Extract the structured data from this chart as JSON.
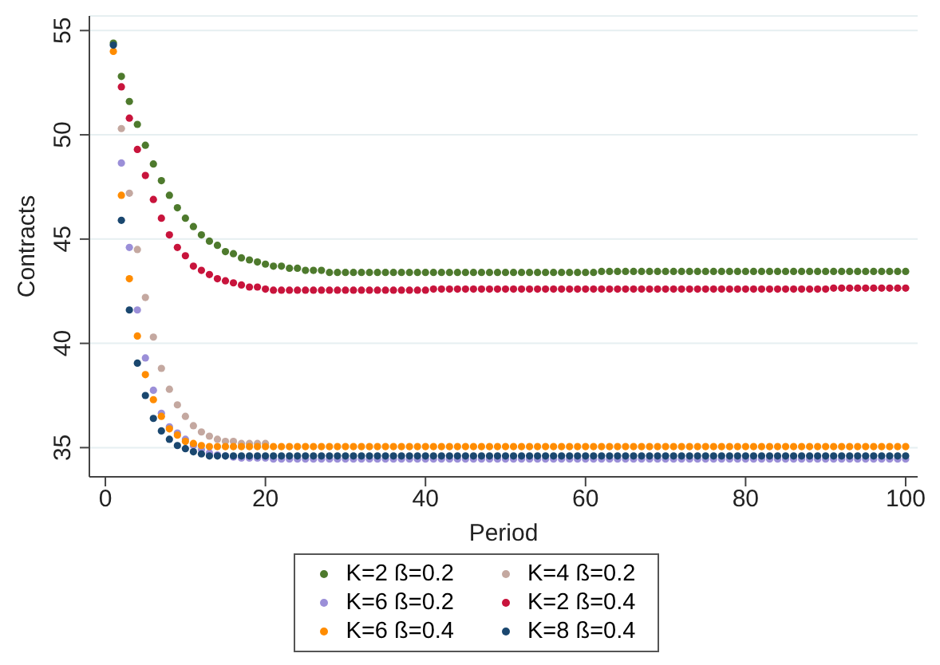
{
  "chart_data": {
    "type": "scatter",
    "xlabel": "Period",
    "ylabel": "Contracts",
    "xlim": [
      -2,
      101.5
    ],
    "xticks": [
      0,
      20,
      40,
      60,
      80,
      100
    ],
    "ylim": [
      33.6,
      55.7
    ],
    "yticks": [
      35,
      40,
      45,
      50,
      55
    ],
    "grid": "y",
    "legend": "bottom",
    "marker": "circle",
    "x": [
      1,
      2,
      3,
      4,
      5,
      6,
      7,
      8,
      9,
      10,
      11,
      12,
      13,
      14,
      15,
      16,
      17,
      18,
      19,
      20,
      21,
      22,
      23,
      24,
      25,
      26,
      27,
      28,
      29,
      30,
      31,
      32,
      33,
      34,
      35,
      36,
      37,
      38,
      39,
      40,
      41,
      42,
      43,
      44,
      45,
      46,
      47,
      48,
      49,
      50,
      51,
      52,
      53,
      54,
      55,
      56,
      57,
      58,
      59,
      60,
      61,
      62,
      63,
      64,
      65,
      66,
      67,
      68,
      69,
      70,
      71,
      72,
      73,
      74,
      75,
      76,
      77,
      78,
      79,
      80,
      81,
      82,
      83,
      84,
      85,
      86,
      87,
      88,
      89,
      90,
      91,
      92,
      93,
      94,
      95,
      96,
      97,
      98,
      99,
      100
    ],
    "series": [
      {
        "name": "K=2 ß=0.2",
        "color": "#4e7a2d",
        "values": [
          54.4,
          52.8,
          51.6,
          50.5,
          49.5,
          48.6,
          47.8,
          47.1,
          46.5,
          46.0,
          45.6,
          45.2,
          44.9,
          44.7,
          44.4,
          44.3,
          44.1,
          44.0,
          43.9,
          43.8,
          43.7,
          43.7,
          43.6,
          43.6,
          43.5,
          43.5,
          43.5,
          43.4,
          43.4,
          43.4,
          43.4,
          43.4,
          43.4,
          43.4,
          43.4,
          43.4,
          43.4,
          43.4,
          43.4,
          43.4,
          43.4,
          43.4,
          43.4,
          43.4,
          43.4,
          43.4,
          43.4,
          43.4,
          43.4,
          43.4,
          43.4,
          43.4,
          43.4,
          43.4,
          43.4,
          43.4,
          43.4,
          43.4,
          43.4,
          43.4,
          43.4,
          43.45,
          43.45,
          43.45,
          43.45,
          43.45,
          43.45,
          43.45,
          43.45,
          43.45,
          43.45,
          43.45,
          43.45,
          43.45,
          43.45,
          43.45,
          43.45,
          43.45,
          43.45,
          43.45,
          43.45,
          43.45,
          43.45,
          43.45,
          43.45,
          43.45,
          43.45,
          43.45,
          43.45,
          43.45,
          43.45,
          43.45,
          43.45,
          43.45,
          43.45,
          43.45,
          43.45,
          43.45,
          43.45,
          43.45
        ]
      },
      {
        "name": "K=4 ß=0.2",
        "color": "#c4a8a0",
        "values": [
          null,
          50.3,
          47.2,
          44.5,
          42.2,
          40.3,
          38.8,
          37.8,
          37.05,
          36.5,
          36.05,
          35.75,
          35.55,
          35.4,
          35.3,
          35.3,
          35.2,
          35.2,
          35.2,
          35.2,
          null,
          null,
          null,
          null,
          null,
          null,
          null,
          null,
          null,
          null,
          null,
          null,
          null,
          null,
          null,
          null,
          null,
          null,
          null,
          null,
          null,
          null,
          null,
          null,
          null,
          null,
          null,
          null,
          null,
          null,
          null,
          null,
          null,
          null,
          null,
          null,
          null,
          null,
          null,
          null,
          null,
          null,
          null,
          null,
          null,
          null,
          null,
          null,
          null,
          null,
          null,
          null,
          null,
          null,
          null,
          null,
          null,
          null,
          null,
          null,
          null,
          null,
          null,
          null,
          null,
          null,
          null,
          null,
          null,
          null,
          null,
          null,
          null,
          null,
          null,
          null,
          null,
          null,
          null,
          null
        ]
      },
      {
        "name": "K=6 ß=0.2",
        "color": "#9b8fd8",
        "values": [
          null,
          48.65,
          44.6,
          41.6,
          39.3,
          37.75,
          36.65,
          36.0,
          35.7,
          35.4,
          35.1,
          34.9,
          34.75,
          34.65,
          34.6,
          34.55,
          34.5,
          34.5,
          34.5,
          34.5,
          34.45,
          34.45,
          34.45,
          34.45,
          34.45,
          34.45,
          34.45,
          34.45,
          34.45,
          34.45,
          34.45,
          34.45,
          34.45,
          34.45,
          34.45,
          34.45,
          34.45,
          34.45,
          34.45,
          34.45,
          34.45,
          34.45,
          34.45,
          34.45,
          34.45,
          34.45,
          34.45,
          34.45,
          34.45,
          34.45,
          34.45,
          34.45,
          34.45,
          34.45,
          34.45,
          34.45,
          34.45,
          34.45,
          34.45,
          34.45,
          34.45,
          34.45,
          34.45,
          34.45,
          34.45,
          34.45,
          34.45,
          34.45,
          34.45,
          34.45,
          34.45,
          34.45,
          34.45,
          34.45,
          34.45,
          34.45,
          34.45,
          34.45,
          34.45,
          34.45,
          34.45,
          34.45,
          34.45,
          34.45,
          34.45,
          34.45,
          34.45,
          34.45,
          34.45,
          34.45,
          34.45,
          34.45,
          34.45,
          34.45,
          34.45,
          34.45,
          34.45,
          34.45,
          34.45,
          34.45
        ]
      },
      {
        "name": "K=2 ß=0.4",
        "color": "#c8143c",
        "values": [
          null,
          52.3,
          50.8,
          49.3,
          48.05,
          46.9,
          46.0,
          45.2,
          44.6,
          44.2,
          43.7,
          43.5,
          43.3,
          43.1,
          43.0,
          42.9,
          42.8,
          42.7,
          42.7,
          42.6,
          42.55,
          42.55,
          42.55,
          42.55,
          42.55,
          42.55,
          42.55,
          42.55,
          42.55,
          42.55,
          42.55,
          42.55,
          42.55,
          42.55,
          42.55,
          42.55,
          42.55,
          42.55,
          42.55,
          42.55,
          42.6,
          42.6,
          42.6,
          42.6,
          42.6,
          42.6,
          42.6,
          42.6,
          42.6,
          42.6,
          42.6,
          42.6,
          42.6,
          42.6,
          42.6,
          42.6,
          42.6,
          42.6,
          42.6,
          42.6,
          42.6,
          42.6,
          42.6,
          42.6,
          42.6,
          42.6,
          42.6,
          42.6,
          42.6,
          42.6,
          42.6,
          42.6,
          42.6,
          42.6,
          42.6,
          42.6,
          42.6,
          42.6,
          42.6,
          42.6,
          42.6,
          42.6,
          42.6,
          42.6,
          42.6,
          42.6,
          42.6,
          42.6,
          42.6,
          42.6,
          42.65,
          42.65,
          42.65,
          42.65,
          42.65,
          42.65,
          42.65,
          42.65,
          42.65,
          42.65
        ]
      },
      {
        "name": "K=6 ß=0.4",
        "color": "#ff8c00",
        "values": [
          54.0,
          47.1,
          43.1,
          40.35,
          38.5,
          37.3,
          36.5,
          35.9,
          35.6,
          35.3,
          35.2,
          35.1,
          35.05,
          35.05,
          35.05,
          35.05,
          35.05,
          35.05,
          35.05,
          35.05,
          35.05,
          35.05,
          35.05,
          35.05,
          35.05,
          35.05,
          35.05,
          35.05,
          35.05,
          35.05,
          35.05,
          35.05,
          35.05,
          35.05,
          35.05,
          35.05,
          35.05,
          35.05,
          35.05,
          35.05,
          35.05,
          35.05,
          35.05,
          35.05,
          35.05,
          35.05,
          35.05,
          35.05,
          35.05,
          35.05,
          35.05,
          35.05,
          35.05,
          35.05,
          35.05,
          35.05,
          35.05,
          35.05,
          35.05,
          35.05,
          35.05,
          35.05,
          35.05,
          35.05,
          35.05,
          35.05,
          35.05,
          35.05,
          35.05,
          35.05,
          35.05,
          35.05,
          35.05,
          35.05,
          35.05,
          35.05,
          35.05,
          35.05,
          35.05,
          35.05,
          35.05,
          35.05,
          35.05,
          35.05,
          35.05,
          35.05,
          35.05,
          35.05,
          35.05,
          35.05,
          35.05,
          35.05,
          35.05,
          35.05,
          35.05,
          35.05,
          35.05,
          35.05,
          35.05,
          35.05
        ]
      },
      {
        "name": "K=8 ß=0.4",
        "color": "#1a476f",
        "values": [
          54.3,
          45.9,
          41.6,
          39.05,
          37.5,
          36.4,
          35.8,
          35.4,
          35.1,
          34.95,
          34.8,
          34.7,
          34.6,
          34.6,
          34.6,
          34.6,
          34.6,
          34.6,
          34.6,
          34.6,
          34.6,
          34.6,
          34.6,
          34.6,
          34.6,
          34.6,
          34.6,
          34.6,
          34.6,
          34.6,
          34.6,
          34.6,
          34.6,
          34.6,
          34.6,
          34.6,
          34.6,
          34.6,
          34.6,
          34.6,
          34.6,
          34.6,
          34.6,
          34.6,
          34.6,
          34.6,
          34.6,
          34.6,
          34.6,
          34.6,
          34.6,
          34.6,
          34.6,
          34.6,
          34.6,
          34.6,
          34.6,
          34.6,
          34.6,
          34.6,
          34.6,
          34.6,
          34.6,
          34.6,
          34.6,
          34.6,
          34.6,
          34.6,
          34.6,
          34.6,
          34.6,
          34.6,
          34.6,
          34.6,
          34.6,
          34.6,
          34.6,
          34.6,
          34.6,
          34.6,
          34.6,
          34.6,
          34.6,
          34.6,
          34.6,
          34.6,
          34.6,
          34.6,
          34.6,
          34.6,
          34.6,
          34.6,
          34.6,
          34.6,
          34.6,
          34.6,
          34.6,
          34.6,
          34.6,
          34.6
        ]
      }
    ]
  }
}
